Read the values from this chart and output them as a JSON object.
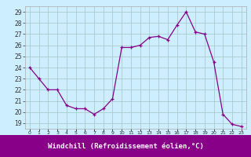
{
  "x": [
    0,
    1,
    2,
    3,
    4,
    5,
    6,
    7,
    8,
    9,
    10,
    11,
    12,
    13,
    14,
    15,
    16,
    17,
    18,
    19,
    20,
    21,
    22,
    23
  ],
  "y": [
    24.0,
    23.0,
    22.0,
    22.0,
    20.6,
    20.3,
    20.3,
    19.8,
    20.3,
    21.2,
    25.8,
    25.8,
    26.0,
    26.7,
    26.8,
    26.5,
    27.8,
    29.0,
    27.2,
    27.0,
    24.5,
    19.8,
    18.9,
    18.7
  ],
  "line_color": "#880088",
  "marker_color": "#880088",
  "bg_color": "#cceeff",
  "grid_color": "#aacccc",
  "xlabel": "Windchill (Refroidissement éolien,°C)",
  "xlabel_color": "#ffffff",
  "xlabel_bg": "#880088",
  "yticks": [
    19,
    20,
    21,
    22,
    23,
    24,
    25,
    26,
    27,
    28,
    29
  ],
  "xtick_labels": [
    "0",
    "1",
    "2",
    "3",
    "4",
    "5",
    "6",
    "7",
    "8",
    "9",
    "10",
    "11",
    "12",
    "13",
    "14",
    "15",
    "16",
    "17",
    "18",
    "19",
    "20",
    "21",
    "22",
    "23"
  ],
  "ylim": [
    18.5,
    29.5
  ],
  "xlim": [
    -0.5,
    23.5
  ],
  "figsize": [
    3.2,
    2.0
  ],
  "dpi": 100
}
